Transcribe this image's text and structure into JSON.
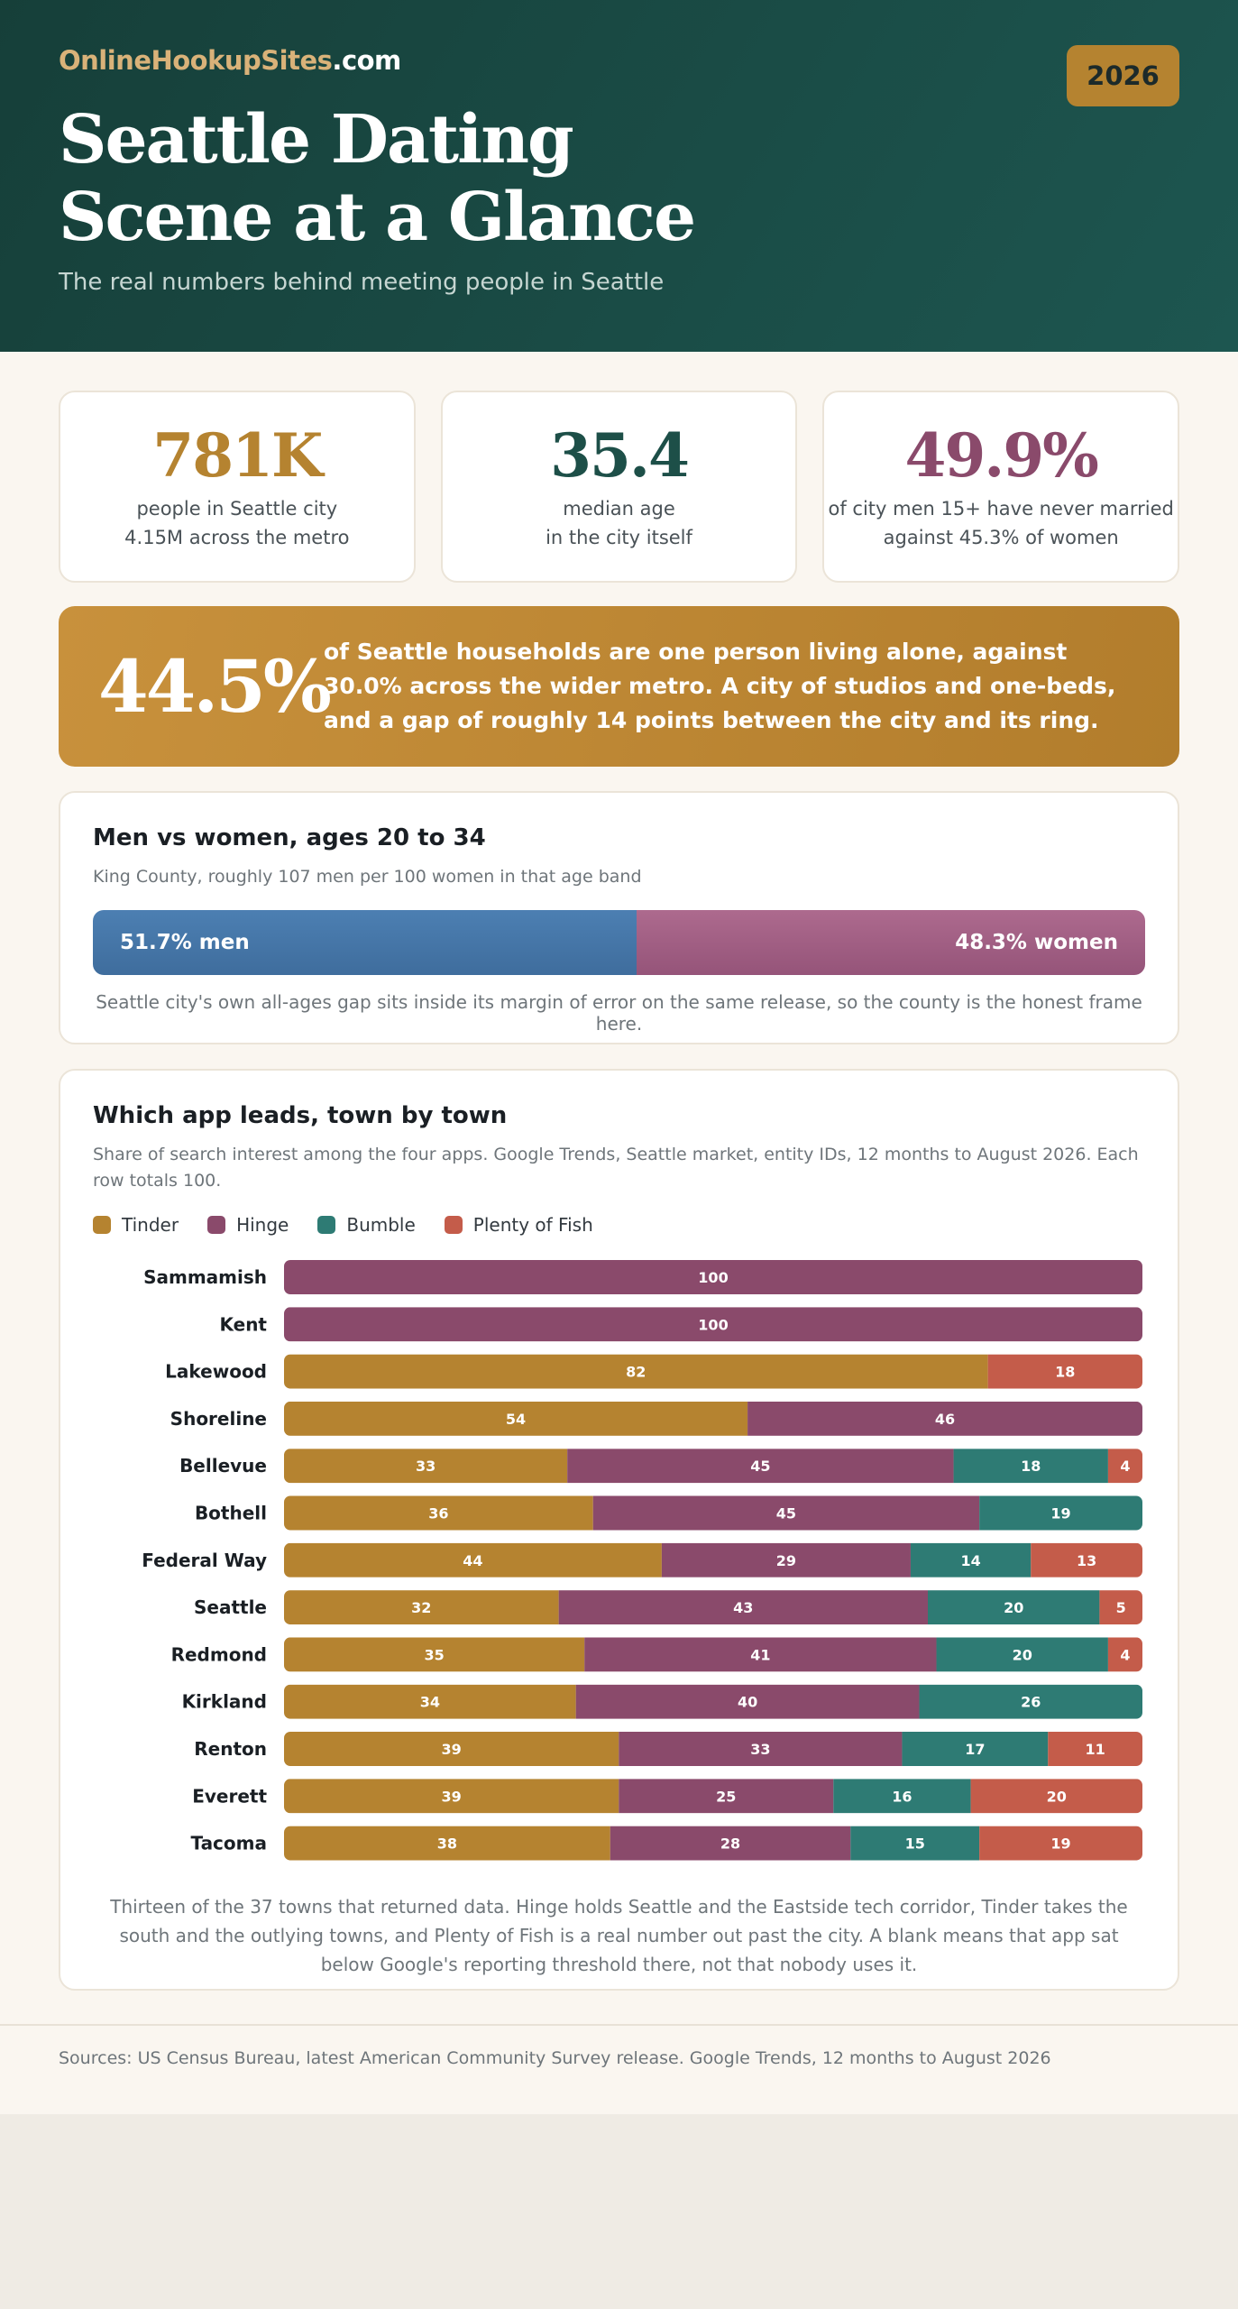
{
  "brand": {
    "name_part1": "OnlineHookupSites",
    "name_part2": ".com"
  },
  "year_badge": "2026",
  "header": {
    "title": "Seattle Dating Scene at a Glance",
    "subtitle": "The real numbers behind meeting people in Seattle"
  },
  "stats": [
    {
      "value": "781K",
      "line1": "people in Seattle city",
      "line2": "4.15M across the metro",
      "color": "#b58330"
    },
    {
      "value": "35.4",
      "line1": "median age",
      "line2": "in the city itself",
      "color": "#1d4f48"
    },
    {
      "value": "49.9%",
      "line1": "of city men 15+ have never married",
      "line2": "against 45.3% of women",
      "color": "#8a4a6b"
    }
  ],
  "callout": {
    "value": "44.5%",
    "text": "of Seattle households are one person living alone, against 30.0% across the wider metro. A city of studios and one-beds, and a gap of roughly 14 points between the city and its ring."
  },
  "gender": {
    "title": "Men vs women, ages 20 to 34",
    "subtitle": "King County, roughly 107 men per 100 women in that age band",
    "men_label": "51.7% men",
    "women_label": "48.3% women",
    "men_share": 51.7,
    "women_share": 48.3,
    "men_color": "#4576a8",
    "women_color": "#a05f84",
    "note": "Seattle city's own all-ages gap sits inside its margin of error on the same release, so the county is the honest frame here."
  },
  "apps": {
    "title": "Which app leads, town by town",
    "subtitle": "Share of search interest among the four apps. Google Trends, Seattle market, entity IDs, 12 months to August 2026. Each row totals 100.",
    "note": "Thirteen of the 37 towns that returned data. Hinge holds Seattle and the Eastside tech corridor, Tinder takes the south and the outlying towns, and Plenty of Fish is a real number out past the city. A blank means that app sat below Google's reporting threshold there, not that nobody uses it."
  },
  "chart_data": {
    "type": "bar",
    "orientation": "horizontal",
    "stacked": true,
    "title": "Which app leads, town by town",
    "xlim": [
      0,
      100
    ],
    "legend_position": "top-left",
    "categories": [
      "Sammamish",
      "Kent",
      "Lakewood",
      "Shoreline",
      "Bellevue",
      "Bothell",
      "Federal Way",
      "Seattle",
      "Redmond",
      "Kirkland",
      "Renton",
      "Everett",
      "Tacoma"
    ],
    "series": [
      {
        "name": "Tinder",
        "color": "#b58330",
        "values": [
          null,
          null,
          82,
          54,
          33,
          36,
          44,
          32,
          35,
          34,
          39,
          39,
          38
        ]
      },
      {
        "name": "Hinge",
        "color": "#8a4a6b",
        "values": [
          100,
          100,
          null,
          46,
          45,
          45,
          29,
          43,
          41,
          40,
          33,
          25,
          28
        ]
      },
      {
        "name": "Bumble",
        "color": "#2e7b74",
        "values": [
          null,
          null,
          null,
          null,
          18,
          19,
          14,
          20,
          20,
          26,
          17,
          16,
          15
        ]
      },
      {
        "name": "Plenty of Fish",
        "color": "#c45c4a",
        "values": [
          null,
          null,
          18,
          null,
          4,
          null,
          13,
          5,
          4,
          null,
          11,
          20,
          19
        ]
      }
    ]
  },
  "sources": "Sources: US Census Bureau, latest American Community Survey release. Google Trends, 12 months to August 2026"
}
